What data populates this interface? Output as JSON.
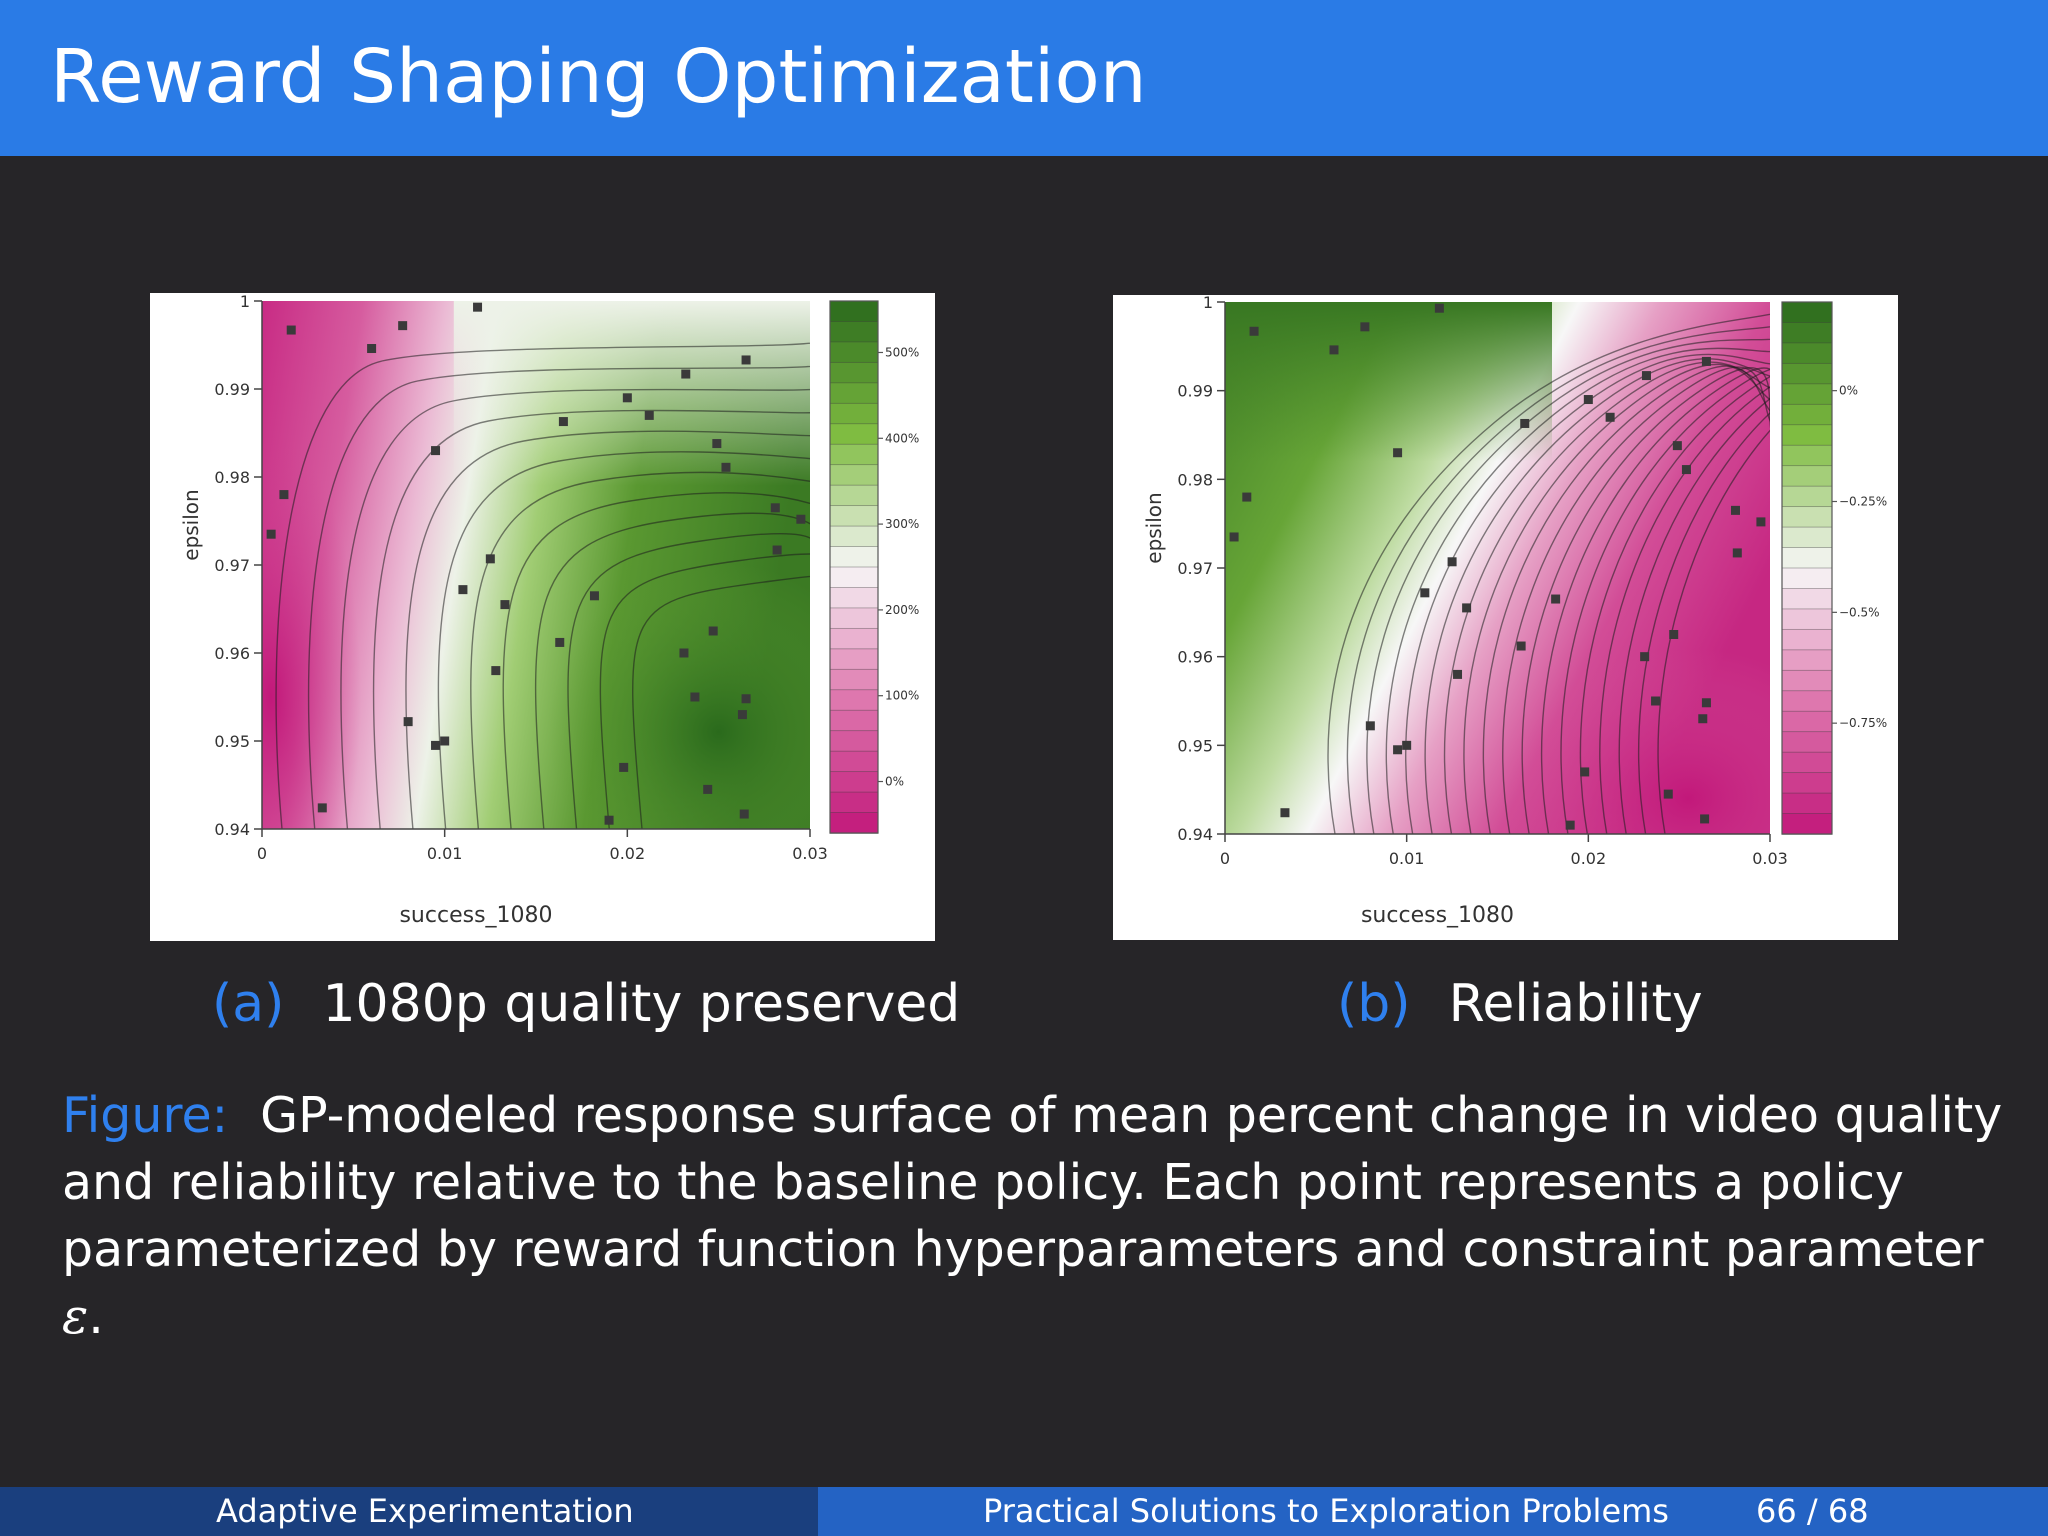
{
  "slide": {
    "title": "Reward Shaping Optimization",
    "subcaption_a_tag": "(a)",
    "subcaption_a_text": "1080p quality preserved",
    "subcaption_b_tag": "(b)",
    "subcaption_b_text": "Reliability",
    "figure_label": "Figure:",
    "figure_caption": "GP-modeled response surface of mean percent change in video quality and reliability relative to the baseline policy. Each point represents a policy parameterized by reward function hyperparameters and constraint parameter",
    "figure_caption_symbol": "ε",
    "figure_caption_end": "."
  },
  "footer": {
    "left": "Adaptive Experimentation",
    "center": "Practical Solutions to Exploration Problems",
    "page": "66 / 68"
  },
  "colors": {
    "title_bar": "#2a7be6",
    "background": "#262528",
    "accent": "#2f80ee",
    "green_dark": "#2a6a1c",
    "white_mid": "#f7f7f7",
    "magenta_dark": "#c2187a"
  },
  "chart_data": [
    {
      "type": "heatmap",
      "id": "a",
      "xlabel": "success_1080",
      "ylabel": "epsilon",
      "xlim": [
        0,
        0.03
      ],
      "ylim": [
        0.94,
        1
      ],
      "x_ticks": [
        "0",
        "0.01",
        "0.02",
        "0.03"
      ],
      "y_ticks": [
        "0.94",
        "0.95",
        "0.96",
        "0.97",
        "0.98",
        "0.99",
        "1"
      ],
      "colorbar_ticks": [
        "0%",
        "100%",
        "200%",
        "300%",
        "400%",
        "500%"
      ],
      "colorbar_values": [
        0,
        100,
        200,
        300,
        400,
        500
      ],
      "colorbar_range": [
        -60,
        560
      ],
      "colorscale_high": "green",
      "points": [
        [
          0.0016,
          0.9967
        ],
        [
          0.006,
          0.9946
        ],
        [
          0.0077,
          0.9972
        ],
        [
          0.0118,
          0.9993
        ],
        [
          0.0012,
          0.978
        ],
        [
          0.0005,
          0.9735
        ],
        [
          0.0033,
          0.9424
        ],
        [
          0.008,
          0.9522
        ],
        [
          0.0095,
          0.9495
        ],
        [
          0.01,
          0.95
        ],
        [
          0.0095,
          0.983
        ],
        [
          0.011,
          0.9672
        ],
        [
          0.0125,
          0.9707
        ],
        [
          0.0133,
          0.9655
        ],
        [
          0.0128,
          0.958
        ],
        [
          0.0163,
          0.9612
        ],
        [
          0.0165,
          0.9863
        ],
        [
          0.0182,
          0.9665
        ],
        [
          0.0198,
          0.947
        ],
        [
          0.019,
          0.941
        ],
        [
          0.02,
          0.989
        ],
        [
          0.0212,
          0.987
        ],
        [
          0.0232,
          0.9917
        ],
        [
          0.0237,
          0.955
        ],
        [
          0.0247,
          0.9625
        ],
        [
          0.0249,
          0.9838
        ],
        [
          0.0254,
          0.9811
        ],
        [
          0.0265,
          0.9933
        ],
        [
          0.0263,
          0.953
        ],
        [
          0.0265,
          0.9548
        ],
        [
          0.0264,
          0.9417
        ],
        [
          0.0244,
          0.9445
        ],
        [
          0.0281,
          0.9765
        ],
        [
          0.0295,
          0.9752
        ],
        [
          0.0282,
          0.9717
        ],
        [
          0.0231,
          0.96
        ]
      ]
    },
    {
      "type": "heatmap",
      "id": "b",
      "xlabel": "success_1080",
      "ylabel": "epsilon",
      "xlim": [
        0,
        0.03
      ],
      "ylim": [
        0.94,
        1
      ],
      "x_ticks": [
        "0",
        "0.01",
        "0.02",
        "0.03"
      ],
      "y_ticks": [
        "0.94",
        "0.95",
        "0.96",
        "0.97",
        "0.98",
        "0.99",
        "1"
      ],
      "colorbar_ticks": [
        "0%",
        "−0.25%",
        "−0.5%",
        "−0.75%"
      ],
      "colorbar_values": [
        0,
        -0.25,
        -0.5,
        -0.75
      ],
      "colorbar_range": [
        -1.0,
        0.2
      ],
      "colorscale_high": "green",
      "points": [
        [
          0.0016,
          0.9967
        ],
        [
          0.006,
          0.9946
        ],
        [
          0.0077,
          0.9972
        ],
        [
          0.0118,
          0.9993
        ],
        [
          0.0012,
          0.978
        ],
        [
          0.0005,
          0.9735
        ],
        [
          0.0033,
          0.9424
        ],
        [
          0.008,
          0.9522
        ],
        [
          0.0095,
          0.9495
        ],
        [
          0.01,
          0.95
        ],
        [
          0.0095,
          0.983
        ],
        [
          0.011,
          0.9672
        ],
        [
          0.0125,
          0.9707
        ],
        [
          0.0133,
          0.9655
        ],
        [
          0.0128,
          0.958
        ],
        [
          0.0163,
          0.9612
        ],
        [
          0.0165,
          0.9863
        ],
        [
          0.0182,
          0.9665
        ],
        [
          0.0198,
          0.947
        ],
        [
          0.019,
          0.941
        ],
        [
          0.02,
          0.989
        ],
        [
          0.0212,
          0.987
        ],
        [
          0.0232,
          0.9917
        ],
        [
          0.0237,
          0.955
        ],
        [
          0.0247,
          0.9625
        ],
        [
          0.0249,
          0.9838
        ],
        [
          0.0254,
          0.9811
        ],
        [
          0.0265,
          0.9933
        ],
        [
          0.0263,
          0.953
        ],
        [
          0.0265,
          0.9548
        ],
        [
          0.0264,
          0.9417
        ],
        [
          0.0244,
          0.9445
        ],
        [
          0.0281,
          0.9765
        ],
        [
          0.0295,
          0.9752
        ],
        [
          0.0282,
          0.9717
        ],
        [
          0.0231,
          0.96
        ]
      ]
    }
  ]
}
